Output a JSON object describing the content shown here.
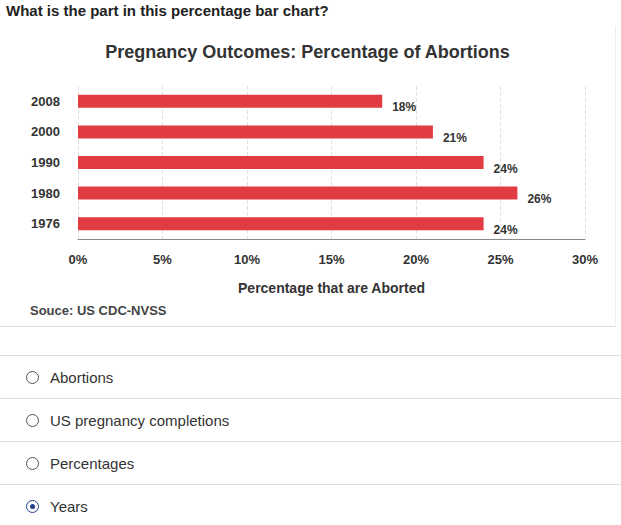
{
  "question": "What is the part in this percentage bar chart?",
  "options": [
    "Abortions",
    "US pregnancy completions",
    "Percentages",
    "Years"
  ],
  "selected": "Years",
  "chart_data": {
    "type": "bar",
    "title": "Pregnancy Outcomes: Percentage of Abortions",
    "orientation": "horizontal",
    "categories": [
      "2008",
      "2000",
      "1990",
      "1980",
      "1976"
    ],
    "values": [
      18,
      21,
      24,
      26,
      24
    ],
    "value_labels": [
      "18%",
      "21%",
      "24%",
      "26%",
      "24%"
    ],
    "data_labels": true,
    "color": "#e03c41",
    "xlabel": "Percentage that are Aborted",
    "source": "Souce: US CDC-NVSS",
    "xlim": [
      0,
      30
    ],
    "xticks": [
      {
        "value": 0,
        "label": "0%"
      },
      {
        "value": 5,
        "label": "5%"
      },
      {
        "value": 10,
        "label": "10%"
      },
      {
        "value": 15,
        "label": "15%"
      },
      {
        "value": 20,
        "label": "20%"
      },
      {
        "value": 25,
        "label": "25%"
      },
      {
        "value": 30,
        "label": "30%"
      }
    ],
    "grid": true
  }
}
